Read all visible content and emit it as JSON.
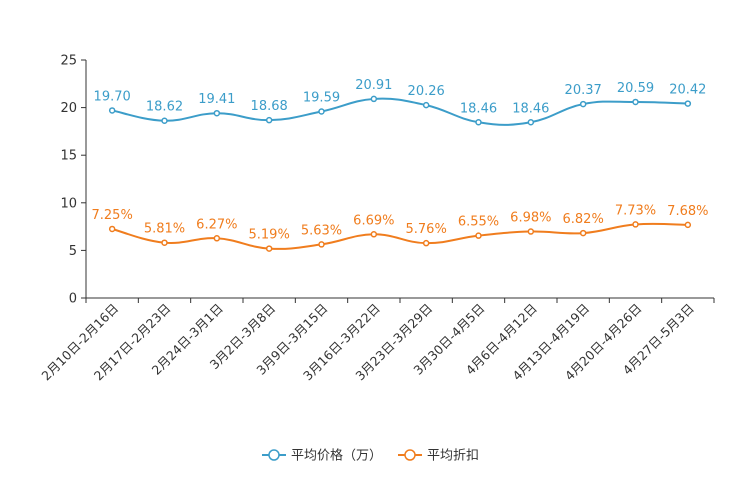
{
  "chart_data": {
    "type": "line",
    "categories": [
      "2月10日-2月16日",
      "2月17日-2月23日",
      "2月24日-3月1日",
      "3月2日-3月8日",
      "3月9日-3月15日",
      "3月16日-3月22日",
      "3月23日-3月29日",
      "3月30日-4月5日",
      "4月6日-4月12日",
      "4月13日-4月19日",
      "4月20日-4月26日",
      "4月27日-5月3日"
    ],
    "series": [
      {
        "name": "平均价格（万）",
        "color": "#3c9dc9",
        "values": [
          19.7,
          18.62,
          19.41,
          18.68,
          19.59,
          20.91,
          20.26,
          18.46,
          18.46,
          20.37,
          20.59,
          20.42
        ],
        "labels": [
          "19.70",
          "18.62",
          "19.41",
          "18.68",
          "19.59",
          "20.91",
          "20.26",
          "18.46",
          "18.46",
          "20.37",
          "20.59",
          "20.42"
        ]
      },
      {
        "name": "平均折扣",
        "color": "#f07d1e",
        "values": [
          7.25,
          5.81,
          6.27,
          5.19,
          5.63,
          6.69,
          5.76,
          6.55,
          6.98,
          6.82,
          7.73,
          7.68
        ],
        "labels": [
          "7.25%",
          "5.81%",
          "6.27%",
          "5.19%",
          "5.63%",
          "6.69%",
          "5.76%",
          "6.55%",
          "6.98%",
          "6.82%",
          "7.73%",
          "7.68%"
        ]
      }
    ],
    "y_ticks": [
      "0",
      "5",
      "10",
      "15",
      "20",
      "25"
    ],
    "ylim": [
      0,
      25
    ],
    "legend_position": "bottom-center"
  }
}
